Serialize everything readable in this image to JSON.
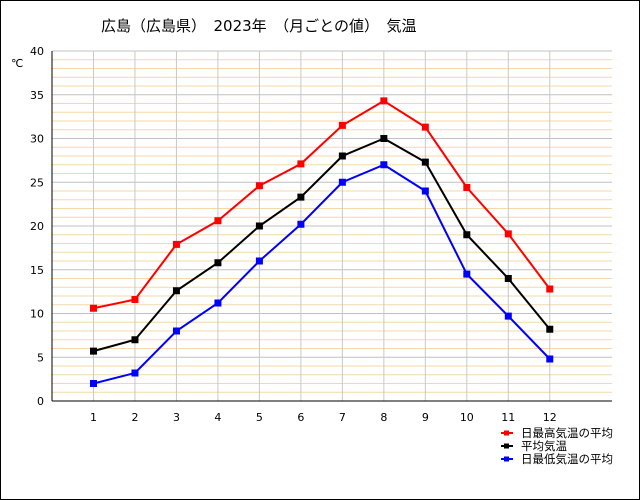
{
  "title": "広島（広島県）　2023年　（月ごとの値）　気温",
  "chart_data": {
    "type": "line",
    "title": "広島（広島県）　2023年　（月ごとの値）　気温",
    "ylabel": "℃",
    "xlabel": "",
    "x": [
      1,
      2,
      3,
      4,
      5,
      6,
      7,
      8,
      9,
      10,
      11,
      12
    ],
    "x_tick_labels": [
      "1",
      "2",
      "3",
      "4",
      "5",
      "6",
      "7",
      "8",
      "9",
      "10",
      "11",
      "12"
    ],
    "ylim": [
      0,
      40
    ],
    "y_ticks": [
      0,
      5,
      10,
      15,
      20,
      25,
      30,
      35,
      40
    ],
    "y_tick_labels": [
      "0",
      "5",
      "10",
      "15",
      "20",
      "25",
      "30",
      "35",
      "40"
    ],
    "grid": true,
    "legend_position": "bottom-right",
    "series": [
      {
        "name": "日最高気温の平均",
        "color": "#ff0000",
        "marker": "square",
        "values": [
          10.6,
          11.6,
          17.9,
          20.6,
          24.6,
          27.1,
          31.5,
          34.3,
          31.3,
          24.4,
          19.1,
          12.8
        ]
      },
      {
        "name": "平均気温",
        "color": "#000000",
        "marker": "square",
        "values": [
          5.7,
          7.0,
          12.6,
          15.8,
          20.0,
          23.3,
          28.0,
          30.0,
          27.3,
          19.0,
          14.0,
          8.2
        ]
      },
      {
        "name": "日最低気温の平均",
        "color": "#0000ff",
        "marker": "square",
        "values": [
          2.0,
          3.2,
          8.0,
          11.2,
          16.0,
          20.2,
          25.0,
          27.0,
          24.0,
          14.5,
          9.7,
          4.8
        ]
      }
    ]
  }
}
